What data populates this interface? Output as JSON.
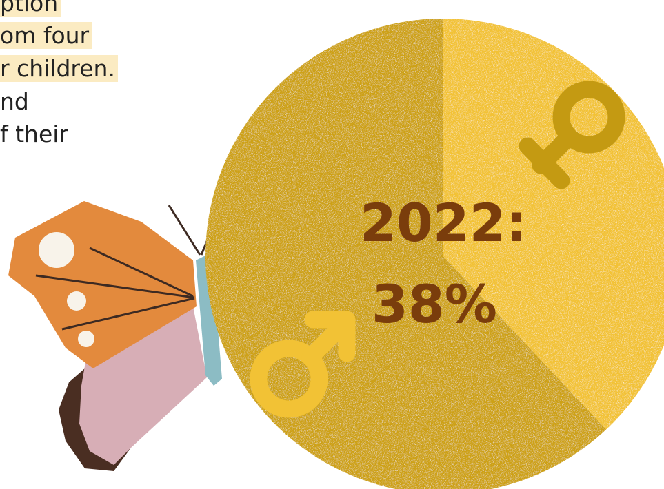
{
  "caption_lines": [
    {
      "text": "ption",
      "highlighted": true
    },
    {
      "text": "om four",
      "highlighted": true
    },
    {
      "text": "r children.",
      "highlighted": true
    },
    {
      "text": "nd",
      "highlighted": false
    },
    {
      "text": "f their",
      "highlighted": false
    }
  ],
  "chart_data": {
    "type": "pie",
    "title": "",
    "center_label_lines": [
      "2022:",
      "38%"
    ],
    "slices": [
      {
        "label": "female",
        "value": 38,
        "color": "#f2c235",
        "icon": "female-symbol-icon"
      },
      {
        "label": "male",
        "value": 62,
        "color": "#cda114",
        "icon": "male-symbol-icon"
      }
    ],
    "legend": "none",
    "grid": false
  },
  "colors": {
    "highlight": "#fbebc2",
    "label_text": "#7a3d0c",
    "female_symbol": "#c49a12",
    "male_symbol": "#f2c235",
    "body_text": "#222222"
  }
}
